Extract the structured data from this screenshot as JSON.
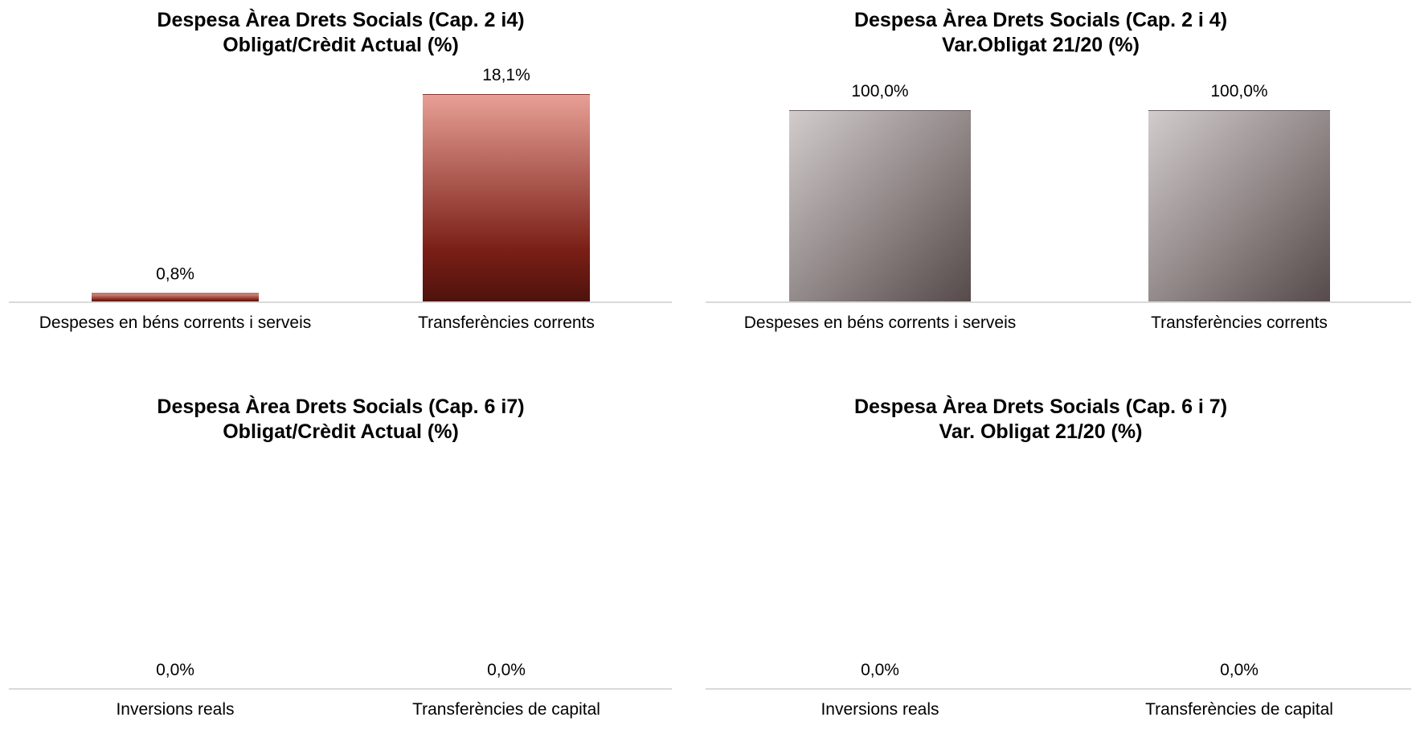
{
  "chart_data": [
    {
      "type": "bar",
      "title": [
        "Despesa Àrea Drets Socials (Cap. 2 i4)",
        "Obligat/Crèdit Actual (%)"
      ],
      "categories": [
        "Despeses en béns corrents i serveis",
        "Transferències corrents"
      ],
      "values": [
        0.8,
        18.1
      ],
      "data_labels": [
        "0,8%",
        "18,1%"
      ],
      "ylim": [
        0,
        18.1
      ],
      "grid": false,
      "colors": {
        "top": "#e8a096",
        "mid": "#7a1f16",
        "bottom": "#4e120c"
      }
    },
    {
      "type": "bar",
      "title": [
        "Despesa Àrea Drets Socials (Cap. 2 i 4)",
        "Var.Obligat 21/20 (%)"
      ],
      "categories": [
        "Despeses en béns corrents i serveis",
        "Transferències corrents"
      ],
      "values": [
        100.0,
        100.0
      ],
      "data_labels": [
        "100,0%",
        "100,0%"
      ],
      "ylim": [
        0,
        100
      ],
      "grid": false,
      "colors": {
        "light": "#d2cccc",
        "dark": "#564a4a"
      }
    },
    {
      "type": "bar",
      "title": [
        "Despesa Àrea Drets Socials (Cap. 6 i7)",
        "Obligat/Crèdit Actual (%)"
      ],
      "categories": [
        "Inversions reals",
        "Transferències de capital"
      ],
      "values": [
        0.0,
        0.0
      ],
      "data_labels": [
        "0,0%",
        "0,0%"
      ],
      "ylim": [
        0,
        1
      ],
      "grid": false
    },
    {
      "type": "bar",
      "title": [
        "Despesa Àrea Drets Socials (Cap. 6 i 7)",
        "Var. Obligat 21/20 (%)"
      ],
      "categories": [
        "Inversions reals",
        "Transferències de capital"
      ],
      "values": [
        0.0,
        0.0
      ],
      "data_labels": [
        "0,0%",
        "0,0%"
      ],
      "ylim": [
        0,
        1
      ],
      "grid": false
    }
  ],
  "colors": {
    "axis": "#d9d9d9"
  }
}
